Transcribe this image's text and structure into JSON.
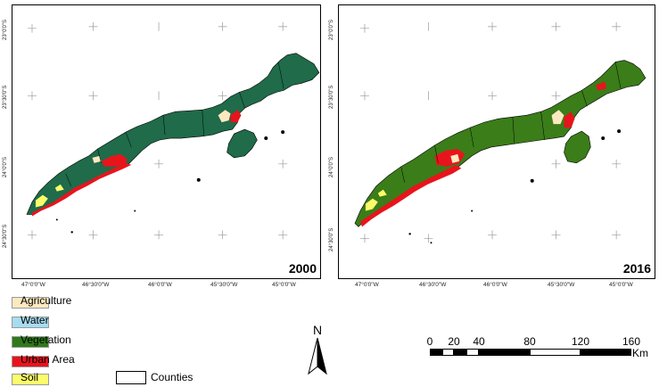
{
  "maps": [
    {
      "year": "2000",
      "lat_labels": [
        "23°0'0\"S",
        "23°30'0\"S",
        "24°0'0\"S",
        "24°30'0\"S"
      ],
      "lon_labels": [
        "47°0'0\"W",
        "46°30'0\"W",
        "46°0'0\"W",
        "45°30'0\"W",
        "45°0'0\"W"
      ]
    },
    {
      "year": "2016",
      "lat_labels": [
        "23°0'0\"S",
        "23°30'0\"S",
        "24°0'0\"S",
        "24°30'0\"S"
      ],
      "lon_labels": [
        "47°0'0\"W",
        "46°30'0\"W",
        "46°0'0\"W",
        "45°30'0\"W",
        "45°0'0\"W"
      ]
    }
  ],
  "legend": [
    {
      "label": "Agriculture",
      "color": "#fde9c0"
    },
    {
      "label": "Water",
      "color": "#a6dcf2"
    },
    {
      "label": "Vegetation",
      "color": "#2e7a1a"
    },
    {
      "label": "Urban Area",
      "color": "#e8141c"
    },
    {
      "label": "Soil",
      "color": "#fcfc6b"
    }
  ],
  "counties_label": "Counties",
  "north_label": "N",
  "scale": {
    "ticks": [
      "0",
      "20",
      "40",
      "80",
      "120",
      "160"
    ],
    "unit": "Km"
  },
  "colors": {
    "vegetation_2000": "#1f6b4a",
    "vegetation_2016": "#3a7d19",
    "urban": "#e8141c",
    "agriculture": "#fde9c0",
    "soil": "#fcfc6b"
  }
}
